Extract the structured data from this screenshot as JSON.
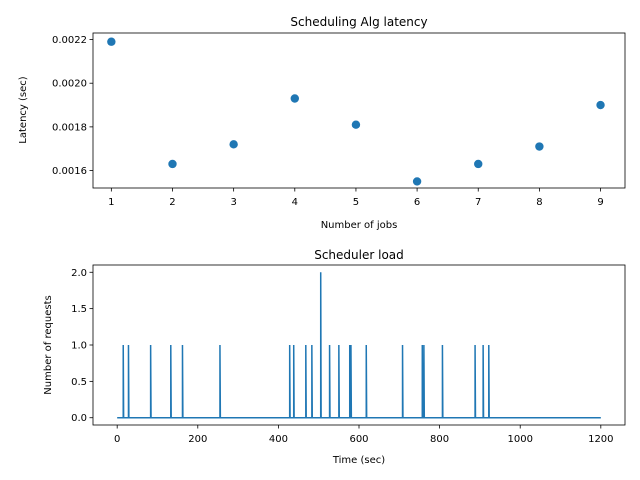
{
  "chart_data": [
    {
      "type": "scatter",
      "title": "Scheduling Alg latency",
      "xlabel": "Number of jobs",
      "ylabel": "Latency (sec)",
      "color": "#1f77b4",
      "grid": false,
      "xlim": [
        0.7,
        9.4
      ],
      "ylim": [
        0.00152,
        0.00223
      ],
      "xticks": [
        1,
        2,
        3,
        4,
        5,
        6,
        7,
        8,
        9
      ],
      "xtick_labels": [
        "1",
        "2",
        "3",
        "4",
        "5",
        "6",
        "7",
        "8",
        "9"
      ],
      "yticks": [
        0.0016,
        0.0018,
        0.002,
        0.0022
      ],
      "ytick_labels": [
        "0.0016",
        "0.0018",
        "0.0020",
        "0.0022"
      ],
      "points": [
        {
          "x": 1,
          "y": 0.00219
        },
        {
          "x": 2,
          "y": 0.00163
        },
        {
          "x": 3,
          "y": 0.00172
        },
        {
          "x": 4,
          "y": 0.00193
        },
        {
          "x": 5,
          "y": 0.00181
        },
        {
          "x": 6,
          "y": 0.00155
        },
        {
          "x": 7,
          "y": 0.00163
        },
        {
          "x": 8,
          "y": 0.00171
        },
        {
          "x": 9,
          "y": 0.0019
        }
      ]
    },
    {
      "type": "line",
      "title": "Scheduler load",
      "xlabel": "Time (sec)",
      "ylabel": "Number of requests",
      "color": "#1f77b4",
      "grid": false,
      "xlim": [
        -60,
        1260
      ],
      "ylim": [
        -0.1,
        2.1
      ],
      "xticks": [
        0,
        200,
        400,
        600,
        800,
        1000,
        1200
      ],
      "xtick_labels": [
        "0",
        "200",
        "400",
        "600",
        "800",
        "1000",
        "1200"
      ],
      "yticks": [
        0.0,
        0.5,
        1.0,
        1.5,
        2.0
      ],
      "ytick_labels": [
        "0.0",
        "0.5",
        "1.0",
        "1.5",
        "2.0"
      ],
      "x_range": [
        0,
        1200
      ],
      "baseline": 0,
      "spikes": [
        {
          "t": 15,
          "n": 1
        },
        {
          "t": 28,
          "n": 1
        },
        {
          "t": 83,
          "n": 1
        },
        {
          "t": 133,
          "n": 1
        },
        {
          "t": 162,
          "n": 1
        },
        {
          "t": 255,
          "n": 1
        },
        {
          "t": 428,
          "n": 1
        },
        {
          "t": 438,
          "n": 1
        },
        {
          "t": 468,
          "n": 1
        },
        {
          "t": 483,
          "n": 1
        },
        {
          "t": 505,
          "n": 2
        },
        {
          "t": 527,
          "n": 1
        },
        {
          "t": 550,
          "n": 1
        },
        {
          "t": 577,
          "n": 1
        },
        {
          "t": 580,
          "n": 1
        },
        {
          "t": 618,
          "n": 1
        },
        {
          "t": 708,
          "n": 1
        },
        {
          "t": 757,
          "n": 1
        },
        {
          "t": 761,
          "n": 1
        },
        {
          "t": 807,
          "n": 1
        },
        {
          "t": 888,
          "n": 1
        },
        {
          "t": 908,
          "n": 1
        },
        {
          "t": 922,
          "n": 1
        }
      ]
    }
  ]
}
